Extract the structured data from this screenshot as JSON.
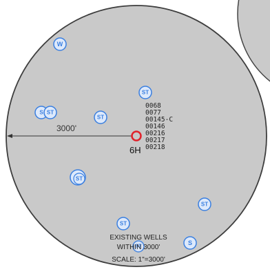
{
  "map": {
    "radius_label": "3000'",
    "center_label": "6H",
    "well_ids": [
      "0068",
      "0077",
      "00145-C",
      "00146",
      "00216",
      "00217",
      "00218"
    ],
    "legend": [
      "EXISTING WELLS",
      "WITHIN 3000'",
      "SCALE: 1\"=3000'"
    ],
    "symbols": [
      {
        "name": "well-symbol-w",
        "label": "W"
      },
      {
        "name": "well-symbol-s-1",
        "label": "S"
      },
      {
        "name": "well-symbol-st-1",
        "label": "ST"
      },
      {
        "name": "well-symbol-st-2",
        "label": "ST"
      },
      {
        "name": "well-symbol-st-3",
        "label": "ST"
      },
      {
        "name": "well-symbol-st-4",
        "label": "ST"
      },
      {
        "name": "well-symbol-st-5",
        "label": "ST"
      },
      {
        "name": "well-symbol-st-6",
        "label": "ST"
      },
      {
        "name": "well-symbol-st-7",
        "label": "ST"
      },
      {
        "name": "well-symbol-s-2",
        "label": "S"
      }
    ],
    "colors": {
      "circle_fill": "#c9c9c9",
      "circle_stroke": "#3d3d3d",
      "symbol": "#3a7fe0",
      "center_marker": "#e0222b"
    }
  }
}
